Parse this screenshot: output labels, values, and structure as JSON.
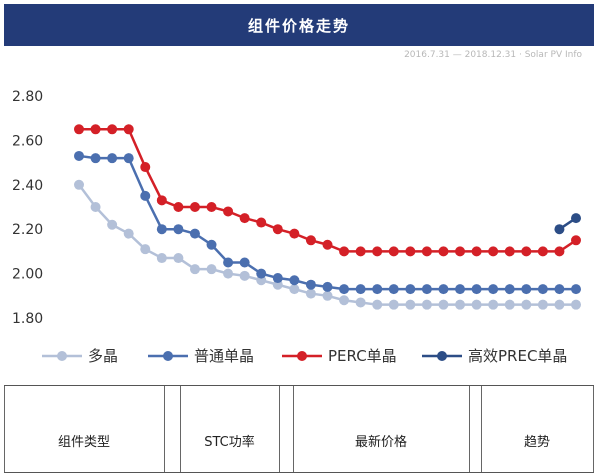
{
  "header": {
    "title": "组件价格走势",
    "subtitle": "2016.7.31 — 2018.12.31 · Solar PV Info"
  },
  "chart_data": {
    "type": "line",
    "title": "组件价格走势",
    "x": [
      1,
      2,
      3,
      4,
      5,
      6,
      7,
      8,
      9,
      10,
      11,
      12,
      13,
      14,
      15,
      16,
      17,
      18,
      19,
      20,
      21,
      22,
      23,
      24,
      25,
      26,
      27,
      28,
      29,
      30,
      31
    ],
    "ylim": [
      1.8,
      2.8
    ],
    "yticks": [
      "2.80",
      "2.60",
      "2.40",
      "2.20",
      "2.00",
      "1.80"
    ],
    "grid": false,
    "legend_position": "bottom",
    "series": [
      {
        "name": "多晶",
        "color": "#b3c0d8",
        "values": [
          2.4,
          2.3,
          2.22,
          2.18,
          2.11,
          2.07,
          2.07,
          2.02,
          2.02,
          2.0,
          1.99,
          1.97,
          1.95,
          1.93,
          1.91,
          1.9,
          1.88,
          1.87,
          1.86,
          1.86,
          1.86,
          1.86,
          1.86,
          1.86,
          1.86,
          1.86,
          1.86,
          1.86,
          1.86,
          1.86,
          1.86
        ]
      },
      {
        "name": "普通单晶",
        "color": "#4b6faf",
        "values": [
          2.53,
          2.52,
          2.52,
          2.52,
          2.35,
          2.2,
          2.2,
          2.18,
          2.13,
          2.05,
          2.05,
          2.0,
          1.98,
          1.97,
          1.95,
          1.94,
          1.93,
          1.93,
          1.93,
          1.93,
          1.93,
          1.93,
          1.93,
          1.93,
          1.93,
          1.93,
          1.93,
          1.93,
          1.93,
          1.93,
          1.93
        ]
      },
      {
        "name": "PERC单晶",
        "color": "#d42027",
        "values": [
          2.65,
          2.65,
          2.65,
          2.65,
          2.48,
          2.33,
          2.3,
          2.3,
          2.3,
          2.28,
          2.25,
          2.23,
          2.2,
          2.18,
          2.15,
          2.13,
          2.1,
          2.1,
          2.1,
          2.1,
          2.1,
          2.1,
          2.1,
          2.1,
          2.1,
          2.1,
          2.1,
          2.1,
          2.1,
          2.1,
          2.15
        ]
      },
      {
        "name": "高效PREC单晶",
        "color": "#2c4d86",
        "values": [
          null,
          null,
          null,
          null,
          null,
          null,
          null,
          null,
          null,
          null,
          null,
          null,
          null,
          null,
          null,
          null,
          null,
          null,
          null,
          null,
          null,
          null,
          null,
          null,
          null,
          null,
          null,
          null,
          null,
          2.2,
          2.25
        ]
      }
    ]
  },
  "table": {
    "headers": [
      "组件类型",
      "STC功率",
      "最新价格",
      "趋势"
    ]
  }
}
